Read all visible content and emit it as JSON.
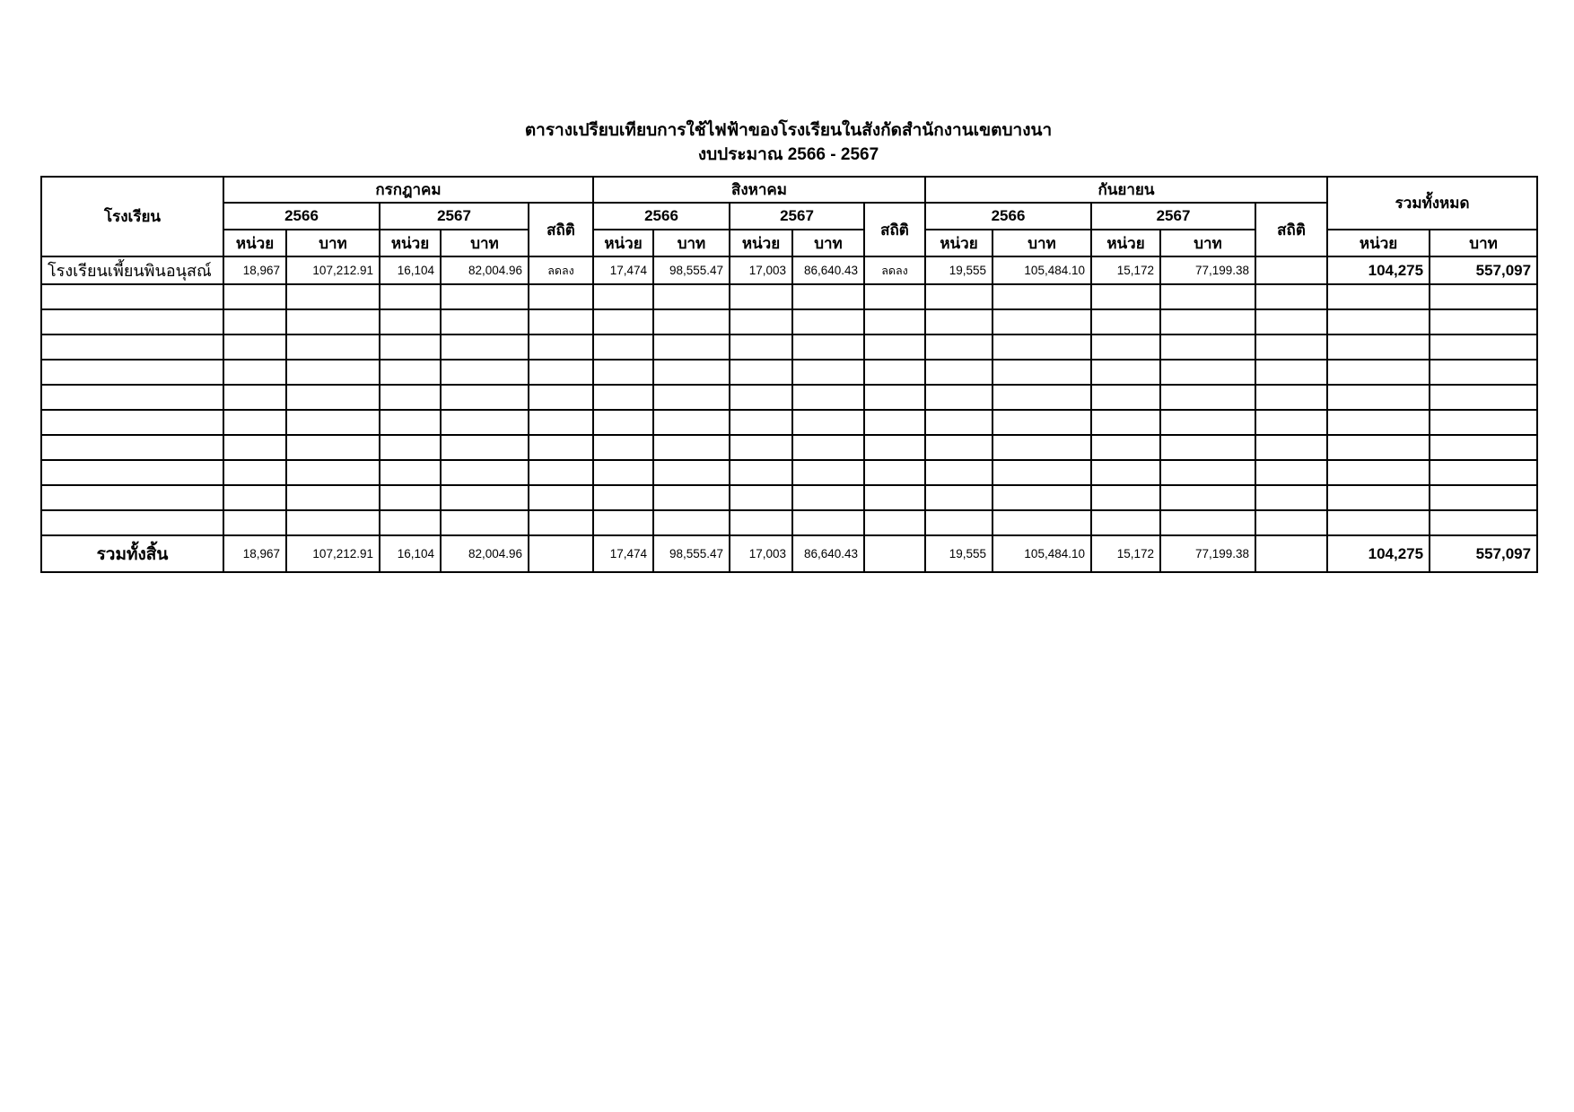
{
  "title": "ตารางเปรียบเทียบการใช้ไฟฟ้าของโรงเรียนในสังกัดสำนักงานเขตบางนา",
  "subtitle": "งบประมาณ 2566 - 2567",
  "table": {
    "school_header": "โรงเรียน",
    "grand_total_header": "รวมทั้งหมด",
    "labels": {
      "year_2566": "2566",
      "year_2567": "2567",
      "unit": "หน่วย",
      "baht": "บาท",
      "stat": "สถิติ"
    },
    "months": [
      {
        "name": "กรกฎาคม"
      },
      {
        "name": "สิงหาคม"
      },
      {
        "name": "กันยายน"
      }
    ],
    "empty_row_count": 10,
    "rows": [
      {
        "school": "โรงเรียนเพี้ยนพินอนุสณ์",
        "jul": {
          "u66": "18,967",
          "b66": "107,212.91",
          "u67": "16,104",
          "b67": "82,004.96",
          "stat": "ลดลง"
        },
        "aug": {
          "u66": "17,474",
          "b66": "98,555.47",
          "u67": "17,003",
          "b67": "86,640.43",
          "stat": "ลดลง"
        },
        "sep": {
          "u66": "19,555",
          "b66": "105,484.10",
          "u67": "15,172",
          "b67": "77,199.38",
          "stat": ""
        },
        "total_units": "104,275",
        "total_baht": "557,097"
      }
    ],
    "footer": {
      "label": "รวมทั้งสิ้น",
      "jul": {
        "u66": "18,967",
        "b66": "107,212.91",
        "u67": "16,104",
        "b67": "82,004.96",
        "stat": ""
      },
      "aug": {
        "u66": "17,474",
        "b66": "98,555.47",
        "u67": "17,003",
        "b67": "86,640.43",
        "stat": ""
      },
      "sep": {
        "u66": "19,555",
        "b66": "105,484.10",
        "u67": "15,172",
        "b67": "77,199.38",
        "stat": ""
      },
      "total_units": "104,275",
      "total_baht": "557,097"
    }
  }
}
